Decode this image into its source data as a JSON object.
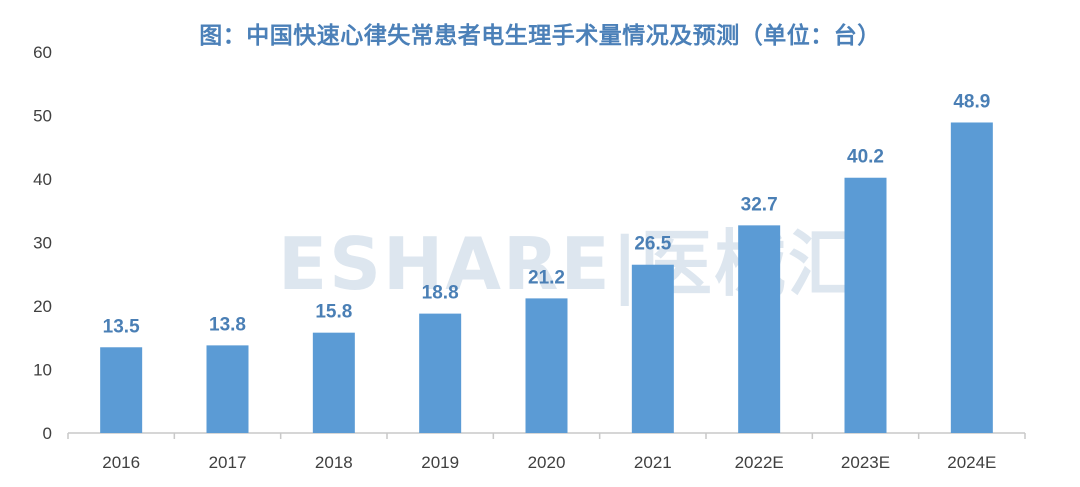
{
  "title": "图：中国快速心律失常患者电生理手术量情况及预测（单位：台）",
  "watermark": "ESHARE|医械汇",
  "colors": {
    "bar": "#5b9bd5",
    "data_label": "#4a7fb5",
    "title": "#4b80b8",
    "axis": "#c9c9c9",
    "tick_text": "#404040"
  },
  "chart_data": {
    "type": "bar",
    "title": "图：中国快速心律失常患者电生理手术量情况及预测（单位：台）",
    "categories": [
      "2016",
      "2017",
      "2018",
      "2019",
      "2020",
      "2021",
      "2022E",
      "2023E",
      "2024E"
    ],
    "values": [
      13.5,
      13.8,
      15.8,
      18.8,
      21.2,
      26.5,
      32.7,
      40.2,
      48.9
    ],
    "yticks": [
      0,
      10,
      20,
      30,
      40,
      50,
      60
    ],
    "ylim": [
      0,
      60
    ],
    "grid": false,
    "legend": "none",
    "xlabel": "",
    "ylabel": ""
  }
}
